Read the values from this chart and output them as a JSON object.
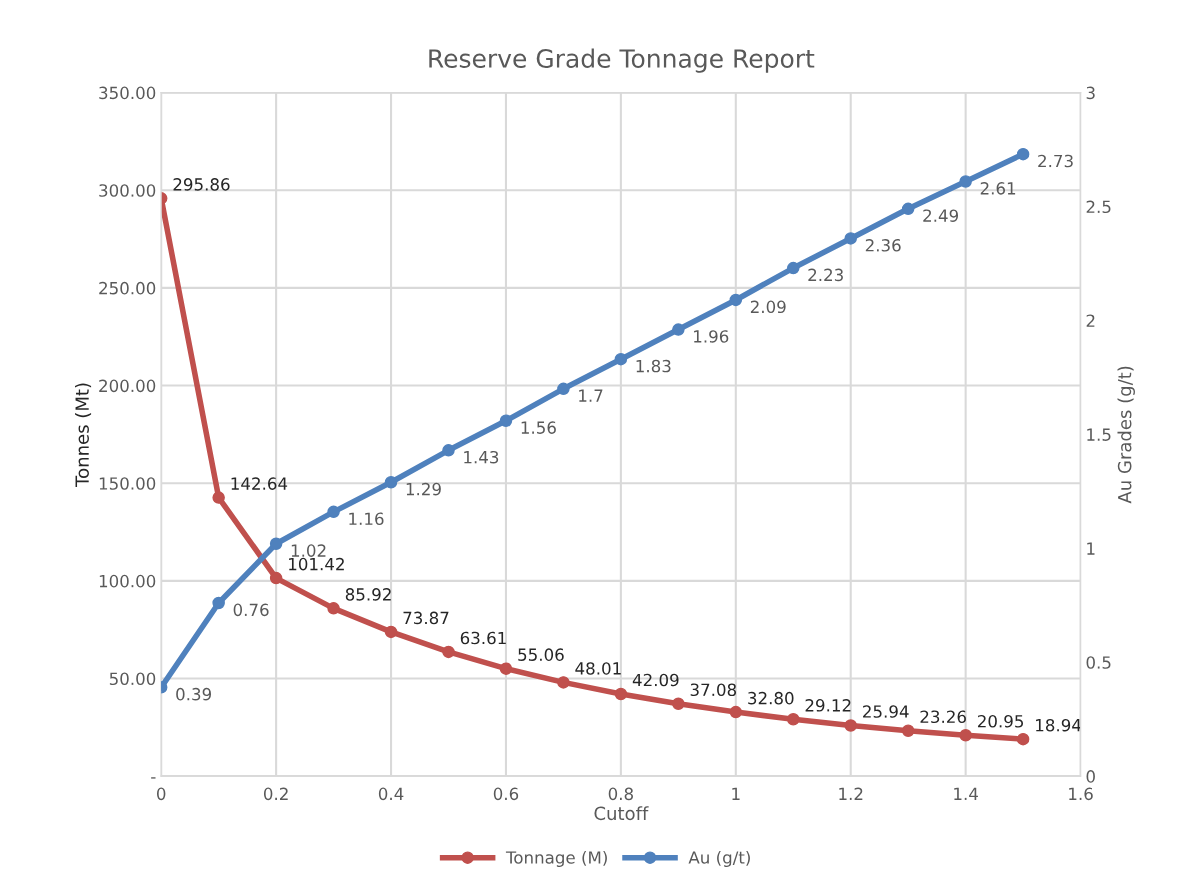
{
  "chart_data": {
    "type": "line",
    "title": "Reserve Grade Tonnage Report",
    "xlabel": "Cutoff",
    "ylabel": "Tonnes (Mt)",
    "y2label": "Au Grades (g/t)",
    "x": [
      0,
      0.1,
      0.2,
      0.3,
      0.4,
      0.5,
      0.6,
      0.7,
      0.8,
      0.9,
      1.0,
      1.1,
      1.2,
      1.3,
      1.4,
      1.5
    ],
    "series": [
      {
        "name": "Tonnage (M)",
        "color": "#c0504d",
        "values": [
          295.86,
          142.64,
          101.42,
          85.92,
          73.87,
          63.61,
          55.06,
          48.01,
          42.09,
          37.08,
          32.8,
          29.12,
          25.94,
          23.26,
          20.95,
          18.94
        ],
        "value_labels": [
          "295.86",
          "142.64",
          "101.42",
          "85.92",
          "73.87",
          "63.61",
          "55.06",
          "48.01",
          "42.09",
          "37.08",
          "32.80",
          "29.12",
          "25.94",
          "23.26",
          "20.95",
          "18.94"
        ]
      },
      {
        "name": "Au (g/t)",
        "color": "#4f81bd",
        "axis": "y2",
        "values": [
          0.39,
          0.76,
          1.02,
          1.16,
          1.29,
          1.43,
          1.56,
          1.7,
          1.83,
          1.96,
          2.09,
          2.23,
          2.36,
          2.49,
          2.61,
          2.73
        ],
        "value_labels": [
          "0.39",
          "0.76",
          "1.02",
          "1.16",
          "1.29",
          "1.43",
          "1.56",
          "1.7",
          "1.83",
          "1.96",
          "2.09",
          "2.23",
          "2.36",
          "2.49",
          "2.61",
          "2.73"
        ]
      }
    ],
    "xlim": [
      0,
      1.6
    ],
    "xticks": [
      0,
      0.2,
      0.4,
      0.6,
      0.8,
      1,
      1.2,
      1.4,
      1.6
    ],
    "ylim": [
      0,
      350
    ],
    "yticks": [
      {
        "value": 0,
        "label": "-"
      },
      {
        "value": 50,
        "label": "50.00"
      },
      {
        "value": 100,
        "label": "100.00"
      },
      {
        "value": 150,
        "label": "150.00"
      },
      {
        "value": 200,
        "label": "200.00"
      },
      {
        "value": 250,
        "label": "250.00"
      },
      {
        "value": 300,
        "label": "300.00"
      },
      {
        "value": 350,
        "label": "350.00"
      }
    ],
    "y2lim": [
      0,
      3
    ],
    "y2ticks": [
      0,
      0.5,
      1,
      1.5,
      2,
      2.5,
      3
    ],
    "grid": true,
    "legend": "bottom",
    "marker": "circle",
    "line_style": "solid"
  }
}
